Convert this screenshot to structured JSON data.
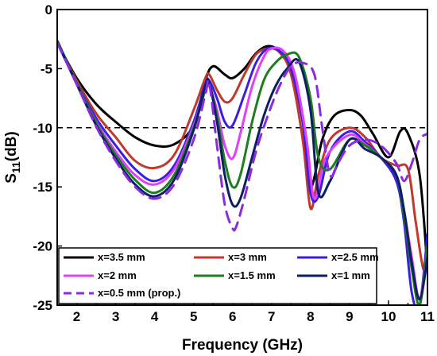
{
  "chart_data": {
    "type": "line",
    "xlabel": "Frequency (GHz)",
    "ylabel": "S11(dB)",
    "ylabel_main": "S",
    "ylabel_sub": "11",
    "ylabel_unit": "(dB)",
    "xlim": [
      1.5,
      11
    ],
    "ylim": [
      -25,
      0
    ],
    "xticks": [
      2,
      3,
      4,
      5,
      6,
      7,
      8,
      9,
      10,
      11
    ],
    "yticks": [
      0,
      -5,
      -10,
      -15,
      -20,
      -25
    ],
    "xtick_labels": [
      "2",
      "3",
      "4",
      "5",
      "6",
      "7",
      "8",
      "9",
      "10",
      "11"
    ],
    "ytick_labels": [
      "0",
      "-5",
      "-10",
      "-15",
      "-20",
      "-25"
    ],
    "reference_line": {
      "y": -10,
      "style": "dashed",
      "color": "#000000"
    },
    "legend_position": "bottom-left",
    "grid": false,
    "series": [
      {
        "name": "x=3.5 mm",
        "color": "#000000",
        "dashed": false,
        "x": [
          1.5,
          2,
          2.5,
          3,
          3.5,
          4,
          4.5,
          5,
          5.3,
          5.5,
          5.8,
          6,
          6.3,
          6.6,
          6.9,
          7.2,
          7.5,
          7.8,
          8.0,
          8.3,
          8.6,
          9.0,
          9.3,
          9.6,
          10.0,
          10.3,
          10.5,
          10.8,
          11
        ],
        "y": [
          -2.8,
          -5.8,
          -8.0,
          -9.5,
          -10.8,
          -11.5,
          -11.4,
          -9.8,
          -6.0,
          -4.8,
          -5.5,
          -5.8,
          -5.0,
          -3.7,
          -3.1,
          -3.5,
          -5.0,
          -9.5,
          -15.0,
          -11.0,
          -9.0,
          -8.5,
          -9.0,
          -10.5,
          -12.5,
          -10.3,
          -10.5,
          -14.0,
          -22.0
        ]
      },
      {
        "name": "x=3 mm",
        "color": "#c0392b",
        "dashed": false,
        "x": [
          1.5,
          2,
          2.5,
          3,
          3.5,
          4,
          4.5,
          5,
          5.3,
          5.4,
          5.6,
          5.8,
          6.0,
          6.3,
          6.6,
          6.9,
          7.2,
          7.5,
          7.8,
          8.0,
          8.2,
          8.5,
          9.0,
          9.4,
          9.8,
          10.2,
          10.5,
          10.7,
          10.9,
          11
        ],
        "y": [
          -2.8,
          -6.0,
          -8.8,
          -10.8,
          -12.8,
          -13.4,
          -12.3,
          -8.5,
          -5.8,
          -5.5,
          -6.8,
          -7.8,
          -7.5,
          -5.5,
          -3.8,
          -3.3,
          -3.6,
          -5.5,
          -11.0,
          -16.8,
          -14.0,
          -11.0,
          -10.0,
          -10.8,
          -12.5,
          -13.2,
          -13.5,
          -18.0,
          -22.0,
          -20.0
        ]
      },
      {
        "name": "x=2.5 mm",
        "color": "#3b1fe0",
        "dashed": false,
        "x": [
          1.5,
          2,
          2.5,
          3,
          3.5,
          4,
          4.5,
          5,
          5.3,
          5.4,
          5.6,
          5.8,
          6.0,
          6.3,
          6.6,
          6.9,
          7.2,
          7.5,
          7.8,
          8.0,
          8.2,
          8.5,
          9.0,
          9.4,
          9.8,
          10.2,
          10.4,
          10.6,
          10.8,
          11
        ],
        "y": [
          -2.8,
          -6.2,
          -9.2,
          -11.5,
          -13.5,
          -14.5,
          -13.2,
          -9.5,
          -6.3,
          -6.0,
          -7.5,
          -9.5,
          -9.8,
          -7.2,
          -4.5,
          -3.3,
          -3.5,
          -5.0,
          -9.5,
          -15.5,
          -15.8,
          -12.0,
          -10.3,
          -11.2,
          -12.5,
          -14.5,
          -18.0,
          -24.0,
          -25.0,
          -19.0
        ]
      },
      {
        "name": "x=2 mm",
        "color": "#e040fb",
        "dashed": false,
        "x": [
          1.5,
          2,
          2.5,
          3,
          3.5,
          4,
          4.5,
          5,
          5.3,
          5.4,
          5.6,
          5.8,
          6.0,
          6.2,
          6.5,
          6.8,
          7.0,
          7.3,
          7.6,
          7.9,
          8.1,
          8.4,
          9.0,
          9.4,
          9.8,
          10.2,
          10.4,
          10.6,
          10.8,
          11
        ],
        "y": [
          -2.8,
          -6.3,
          -9.5,
          -12.0,
          -14.0,
          -14.8,
          -13.5,
          -9.8,
          -6.8,
          -6.5,
          -8.5,
          -11.5,
          -12.6,
          -10.5,
          -6.5,
          -4.0,
          -3.3,
          -3.5,
          -5.5,
          -11.0,
          -16.0,
          -12.5,
          -10.6,
          -11.4,
          -12.5,
          -14.0,
          -17.0,
          -21.0,
          -24.5,
          -20.0
        ]
      },
      {
        "name": "x=1.5 mm",
        "color": "#1e7d1e",
        "dashed": false,
        "x": [
          1.5,
          2,
          2.5,
          3,
          3.5,
          4,
          4.5,
          5,
          5.3,
          5.4,
          5.6,
          5.8,
          6.0,
          6.2,
          6.5,
          6.8,
          7.1,
          7.4,
          7.7,
          8.0,
          8.2,
          8.5,
          9.0,
          9.4,
          9.8,
          10.2,
          10.4,
          10.6,
          10.8,
          11
        ],
        "y": [
          -2.6,
          -6.2,
          -9.6,
          -12.3,
          -14.4,
          -15.5,
          -14.0,
          -10.0,
          -6.8,
          -6.3,
          -9.0,
          -12.8,
          -15.0,
          -14.0,
          -9.5,
          -6.0,
          -4.5,
          -3.8,
          -4.0,
          -7.5,
          -12.5,
          -13.5,
          -11.0,
          -11.5,
          -12.5,
          -14.0,
          -17.5,
          -22.0,
          -25.0,
          -20.0
        ]
      },
      {
        "name": "x=1 mm",
        "color": "#0d1f63",
        "dashed": false,
        "x": [
          1.5,
          2,
          2.5,
          3,
          3.5,
          4,
          4.5,
          5,
          5.3,
          5.4,
          5.6,
          5.8,
          6.0,
          6.2,
          6.5,
          6.8,
          7.1,
          7.4,
          7.7,
          8.0,
          8.2,
          8.5,
          9.0,
          9.4,
          9.8,
          10.2,
          10.4,
          10.6,
          10.8,
          11
        ],
        "y": [
          -2.7,
          -6.3,
          -9.8,
          -12.6,
          -14.8,
          -15.8,
          -14.4,
          -10.2,
          -6.5,
          -6.2,
          -9.5,
          -14.0,
          -16.5,
          -16.0,
          -12.5,
          -9.0,
          -6.5,
          -5.0,
          -4.4,
          -8.5,
          -15.5,
          -14.5,
          -11.0,
          -11.8,
          -12.5,
          -14.0,
          -17.0,
          -21.5,
          -24.5,
          -21.0
        ]
      },
      {
        "name": "x=0.5 mm (prop.)",
        "color": "#8a2be2",
        "dashed": true,
        "x": [
          1.5,
          2,
          2.5,
          3,
          3.5,
          4,
          4.5,
          5,
          5.3,
          5.4,
          5.6,
          5.8,
          6.0,
          6.1,
          6.3,
          6.6,
          6.9,
          7.2,
          7.5,
          7.8,
          8.1,
          8.3,
          8.5,
          8.7,
          9.0,
          9.4,
          9.8,
          10.2,
          10.4,
          10.6,
          10.8,
          11
        ],
        "y": [
          -2.8,
          -6.3,
          -9.9,
          -12.8,
          -15.0,
          -16.0,
          -14.8,
          -11.0,
          -7.2,
          -6.2,
          -11.5,
          -16.5,
          -18.5,
          -18.3,
          -16.0,
          -12.0,
          -9.0,
          -6.5,
          -4.8,
          -4.5,
          -5.5,
          -10.0,
          -14.0,
          -13.0,
          -11.5,
          -11.0,
          -11.5,
          -13.0,
          -14.5,
          -13.0,
          -11.0,
          -10.5
        ]
      }
    ]
  }
}
